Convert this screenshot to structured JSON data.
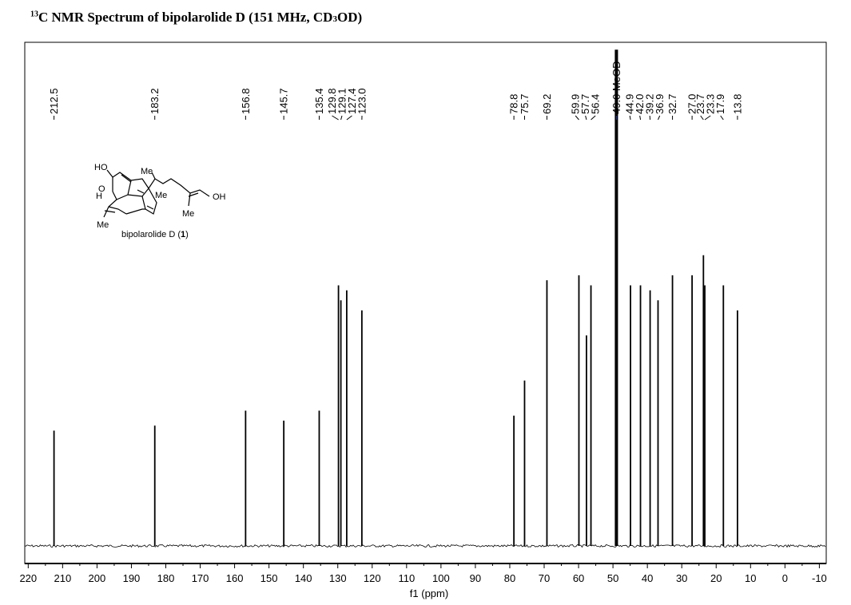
{
  "title": {
    "isotope_mass": "13",
    "text_a": "C NMR Spectrum of bipolarolide D (151 MHz, CD",
    "sub": "3",
    "text_b": "OD)"
  },
  "chart_data": {
    "type": "line",
    "title": "13C NMR Spectrum of bipolarolide D (151 MHz, CD3OD)",
    "xlabel": "f1 (ppm)",
    "ylabel": "",
    "x_reversed": true,
    "xlim": [
      221,
      -12
    ],
    "ylim": [
      0,
      1
    ],
    "x_ticks": [
      220,
      210,
      200,
      190,
      180,
      170,
      160,
      150,
      140,
      130,
      120,
      110,
      100,
      90,
      80,
      70,
      60,
      50,
      40,
      30,
      20,
      10,
      0,
      -10
    ],
    "x_tick_labels": [
      "220",
      "210",
      "200",
      "190",
      "180",
      "170",
      "160",
      "150",
      "140",
      "130",
      "120",
      "110",
      "100",
      "90",
      "80",
      "70",
      "60",
      "50",
      "40",
      "30",
      "20",
      "10",
      "0",
      "-10"
    ],
    "grid": false,
    "peaks": [
      {
        "ppm": 212.5,
        "intensity": 0.23,
        "label": "212.5"
      },
      {
        "ppm": 183.2,
        "intensity": 0.24,
        "label": "183.2"
      },
      {
        "ppm": 156.8,
        "intensity": 0.27,
        "label": "156.8"
      },
      {
        "ppm": 145.7,
        "intensity": 0.25,
        "label": "145.7"
      },
      {
        "ppm": 135.4,
        "intensity": 0.27,
        "label": "135.4"
      },
      {
        "ppm": 129.8,
        "intensity": 0.52,
        "label": "129.8"
      },
      {
        "ppm": 129.1,
        "intensity": 0.49,
        "label": "129.1"
      },
      {
        "ppm": 127.4,
        "intensity": 0.51,
        "label": "127.4"
      },
      {
        "ppm": 123.0,
        "intensity": 0.47,
        "label": "123.0"
      },
      {
        "ppm": 78.8,
        "intensity": 0.26,
        "label": "78.8"
      },
      {
        "ppm": 75.7,
        "intensity": 0.33,
        "label": "75.7"
      },
      {
        "ppm": 69.2,
        "intensity": 0.53,
        "label": "69.2"
      },
      {
        "ppm": 59.9,
        "intensity": 0.54,
        "label": "59.9"
      },
      {
        "ppm": 57.7,
        "intensity": 0.42,
        "label": "57.7"
      },
      {
        "ppm": 56.4,
        "intensity": 0.52,
        "label": "56.4"
      },
      {
        "ppm": 49.0,
        "intensity": 0.99,
        "label": "49.0 MeOD",
        "solvent": true
      },
      {
        "ppm": 44.9,
        "intensity": 0.52,
        "label": "44.9"
      },
      {
        "ppm": 42.0,
        "intensity": 0.52,
        "label": "42.0"
      },
      {
        "ppm": 39.2,
        "intensity": 0.51,
        "label": "39.2"
      },
      {
        "ppm": 36.9,
        "intensity": 0.49,
        "label": "36.9"
      },
      {
        "ppm": 32.7,
        "intensity": 0.54,
        "label": "32.7"
      },
      {
        "ppm": 27.0,
        "intensity": 0.54,
        "label": "27.0"
      },
      {
        "ppm": 23.7,
        "intensity": 0.58,
        "label": "23.7"
      },
      {
        "ppm": 23.3,
        "intensity": 0.52,
        "label": "23.3"
      },
      {
        "ppm": 17.9,
        "intensity": 0.52,
        "label": "17.9"
      },
      {
        "ppm": 13.8,
        "intensity": 0.47,
        "label": "13.8"
      }
    ]
  },
  "structure": {
    "compound_label": "bipolarolide D (",
    "compound_number": "1",
    "compound_label_end": ")",
    "labels": {
      "ho_top": "HO",
      "oh_right": "OH",
      "o_ketone": "O",
      "h": "H",
      "me_top": "Me",
      "me_mid": "Me",
      "me_chain": "Me",
      "me_left": "Me"
    }
  },
  "colors": {
    "spectrum": "#000000",
    "solvent_label": "#1f3ab3"
  }
}
